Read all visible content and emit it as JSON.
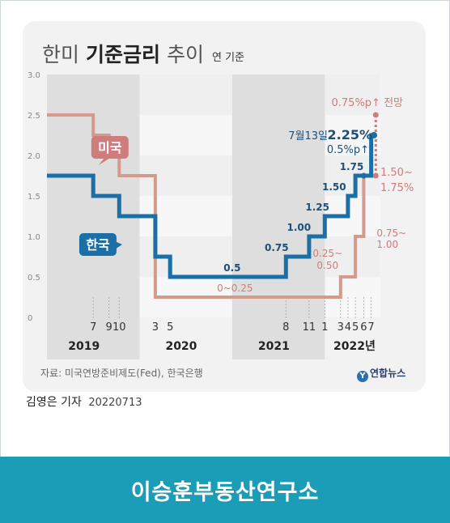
{
  "title_light_1": "한미",
  "title_bold": "기준금리",
  "title_light_2": "추이",
  "unit_label": "연 기준",
  "source": "자료: 미국연방준비제도(Fed), 한국은행",
  "logo": "연합뉴스",
  "byline_name": "김영은 기자",
  "byline_date": "20220713",
  "banner": "이승훈부동산연구소",
  "colors": {
    "korea": "#1a6fa6",
    "us": "#d49a8c",
    "us_label": "#cf7c7c",
    "shade": "#dedede"
  },
  "chart_data": {
    "type": "line",
    "ylim": [
      0,
      3.0
    ],
    "yticks": [
      "0",
      "0.5",
      "1.0",
      "1.5",
      "2.0",
      "2.5",
      "3.0"
    ],
    "year_labels": [
      "2019",
      "2020",
      "2021",
      "2022년"
    ],
    "x_labels": [
      {
        "label": "7",
        "x": 2019.5
      },
      {
        "label": "9",
        "x": 2019.67
      },
      {
        "label": "10",
        "x": 2019.78
      },
      {
        "label": "3",
        "x": 2020.17
      },
      {
        "label": "5",
        "x": 2020.33
      },
      {
        "label": "8",
        "x": 2021.58
      },
      {
        "label": "11",
        "x": 2021.83
      },
      {
        "label": "1",
        "x": 2022.0
      },
      {
        "label": "3",
        "x": 2022.17
      },
      {
        "label": "4",
        "x": 2022.25
      },
      {
        "label": "5",
        "x": 2022.33
      },
      {
        "label": "6",
        "x": 2022.42
      },
      {
        "label": "7",
        "x": 2022.5
      }
    ],
    "series": [
      {
        "name": "미국",
        "points": [
          [
            2019.0,
            2.5
          ],
          [
            2019.5,
            2.5
          ],
          [
            2019.5,
            2.25
          ],
          [
            2019.67,
            2.25
          ],
          [
            2019.67,
            2.0
          ],
          [
            2019.78,
            2.0
          ],
          [
            2019.78,
            1.75
          ],
          [
            2020.17,
            1.75
          ],
          [
            2020.17,
            0.25
          ],
          [
            2022.17,
            0.25
          ],
          [
            2022.17,
            0.5
          ],
          [
            2022.33,
            0.5
          ],
          [
            2022.33,
            1.0
          ],
          [
            2022.42,
            1.0
          ],
          [
            2022.42,
            1.75
          ],
          [
            2022.55,
            1.75
          ]
        ]
      },
      {
        "name": "한국",
        "points": [
          [
            2019.0,
            1.75
          ],
          [
            2019.5,
            1.75
          ],
          [
            2019.5,
            1.5
          ],
          [
            2019.78,
            1.5
          ],
          [
            2019.78,
            1.25
          ],
          [
            2020.17,
            1.25
          ],
          [
            2020.17,
            0.75
          ],
          [
            2020.33,
            0.75
          ],
          [
            2020.33,
            0.5
          ],
          [
            2021.58,
            0.5
          ],
          [
            2021.58,
            0.75
          ],
          [
            2021.83,
            0.75
          ],
          [
            2021.83,
            1.0
          ],
          [
            2022.0,
            1.0
          ],
          [
            2022.0,
            1.25
          ],
          [
            2022.25,
            1.25
          ],
          [
            2022.25,
            1.5
          ],
          [
            2022.33,
            1.5
          ],
          [
            2022.33,
            1.75
          ],
          [
            2022.5,
            1.75
          ],
          [
            2022.5,
            2.25
          ],
          [
            2022.53,
            2.25
          ]
        ]
      }
    ],
    "us_projection": {
      "from": [
        2022.55,
        1.75
      ],
      "to": [
        2022.55,
        2.5
      ],
      "label": "0.75%p↑ 전망"
    },
    "korea_dot": [
      2022.53,
      2.25
    ],
    "korea_step_dot": [
      2022.42,
      1.75
    ],
    "us_dot": [
      2022.55,
      1.75
    ],
    "annotations": [
      {
        "text": "0.5",
        "x": 2021.0,
        "y": 0.5,
        "series": "한국",
        "pos": "above"
      },
      {
        "text": "0.75",
        "x": 2021.48,
        "y": 0.75,
        "series": "한국",
        "pos": "above"
      },
      {
        "text": "1.00",
        "x": 2021.72,
        "y": 1.0,
        "series": "한국",
        "pos": "above"
      },
      {
        "text": "1.25",
        "x": 2021.92,
        "y": 1.25,
        "series": "한국",
        "pos": "above"
      },
      {
        "text": "1.50",
        "x": 2022.1,
        "y": 1.5,
        "series": "한국",
        "pos": "above"
      },
      {
        "text": "1.75",
        "x": 2022.29,
        "y": 1.75,
        "series": "한국",
        "pos": "above"
      },
      {
        "text": "0~0.25",
        "x": 2021.03,
        "y": 0.25,
        "series": "미국",
        "pos": "above"
      },
      {
        "text": "0.25~",
        "x": 2022.03,
        "y": 0.75,
        "series": "미국",
        "pos": "left"
      },
      {
        "text": "0.50",
        "x": 2022.03,
        "y": 0.6,
        "series": "미국",
        "pos": "left"
      },
      {
        "text": "0.75~",
        "x": 2022.56,
        "y": 1.0,
        "series": "미국",
        "pos": "right"
      },
      {
        "text": "1.00",
        "x": 2022.56,
        "y": 0.86,
        "series": "미국",
        "pos": "right"
      },
      {
        "text": "1.50~",
        "x": 2022.6,
        "y": 1.75,
        "series": "미국",
        "pos": "right"
      },
      {
        "text": "1.75%",
        "x": 2022.6,
        "y": 1.56,
        "series": "미국",
        "pos": "right"
      }
    ],
    "korea_callout": {
      "prefix": "7월13일",
      "value": "2.25%",
      "sub": "0.5%p↑"
    },
    "legend": [
      {
        "name": "미국",
        "x": 2019.68,
        "y": 2.1
      },
      {
        "name": "한국",
        "x": 2019.55,
        "y": 0.9
      }
    ]
  }
}
